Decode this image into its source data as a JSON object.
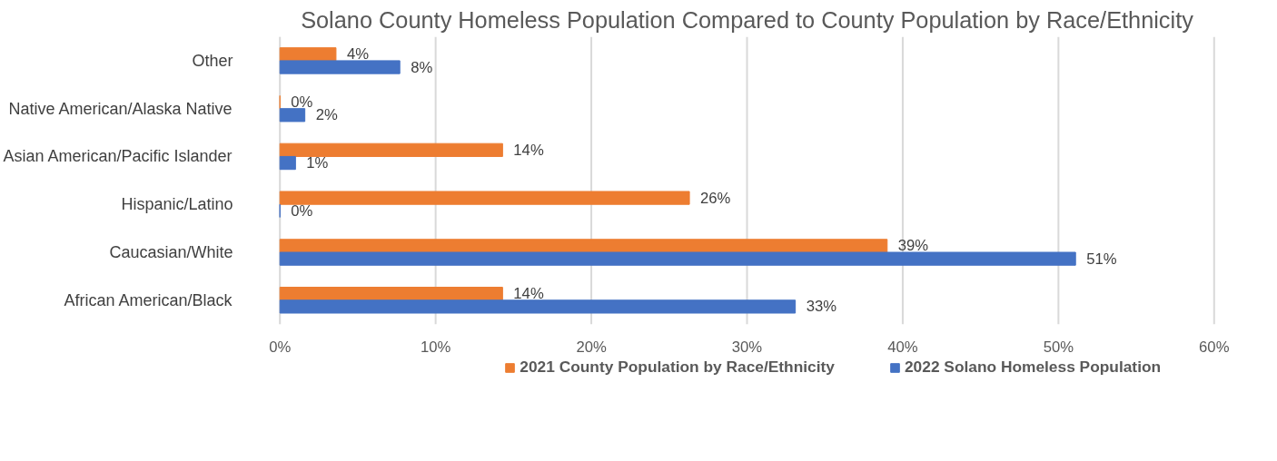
{
  "chart_data": {
    "type": "bar",
    "orientation": "horizontal",
    "title": "Solano County Homeless Population Compared to County Population by Race/Ethnicity",
    "categories": [
      "Other",
      "Native American/Alaska Native",
      "Asian American/Pacific Islander",
      "Hispanic/Latino",
      "Caucasian/White",
      "African American/Black"
    ],
    "series": [
      {
        "name": "2021 County Population by Race/Ethnicity",
        "color": "#ed7d31",
        "values": [
          3.6,
          0,
          14.3,
          26.3,
          39,
          14.3
        ],
        "value_labels": [
          "4%",
          "0%",
          "14%",
          "26%",
          "39%",
          "14%"
        ]
      },
      {
        "name": "2022 Solano Homeless Population",
        "color": "#4472c4",
        "values": [
          7.7,
          1.6,
          1.0,
          0,
          51.1,
          33.1
        ],
        "value_labels": [
          "8%",
          "2%",
          "1%",
          "0%",
          "51%",
          "33%"
        ]
      }
    ],
    "xlim": [
      0,
      60
    ],
    "xticks": [
      {
        "value": 0,
        "label": "0%"
      },
      {
        "value": 10,
        "label": "10%"
      },
      {
        "value": 20,
        "label": "20%"
      },
      {
        "value": 30,
        "label": "30%"
      },
      {
        "value": 40,
        "label": "40%"
      },
      {
        "value": 50,
        "label": "50%"
      },
      {
        "value": 60,
        "label": "60%"
      }
    ],
    "grid": "x",
    "legend": "bottom"
  }
}
